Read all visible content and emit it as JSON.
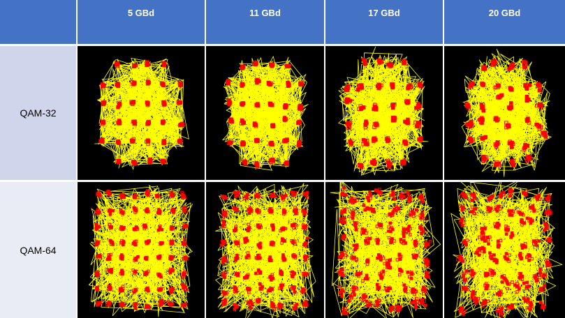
{
  "columns": [
    "5 GBd",
    "11 GBd",
    "17 GBd",
    "20 GBd"
  ],
  "rows": [
    "QAM-32",
    "QAM-64"
  ],
  "colors": {
    "header": "#4472c4",
    "row_1": "#cfd5ea",
    "row_2": "#e9ebf5",
    "plot_bg": "#000000",
    "trace": "#ffff00",
    "symbol": "#ff0000"
  }
}
